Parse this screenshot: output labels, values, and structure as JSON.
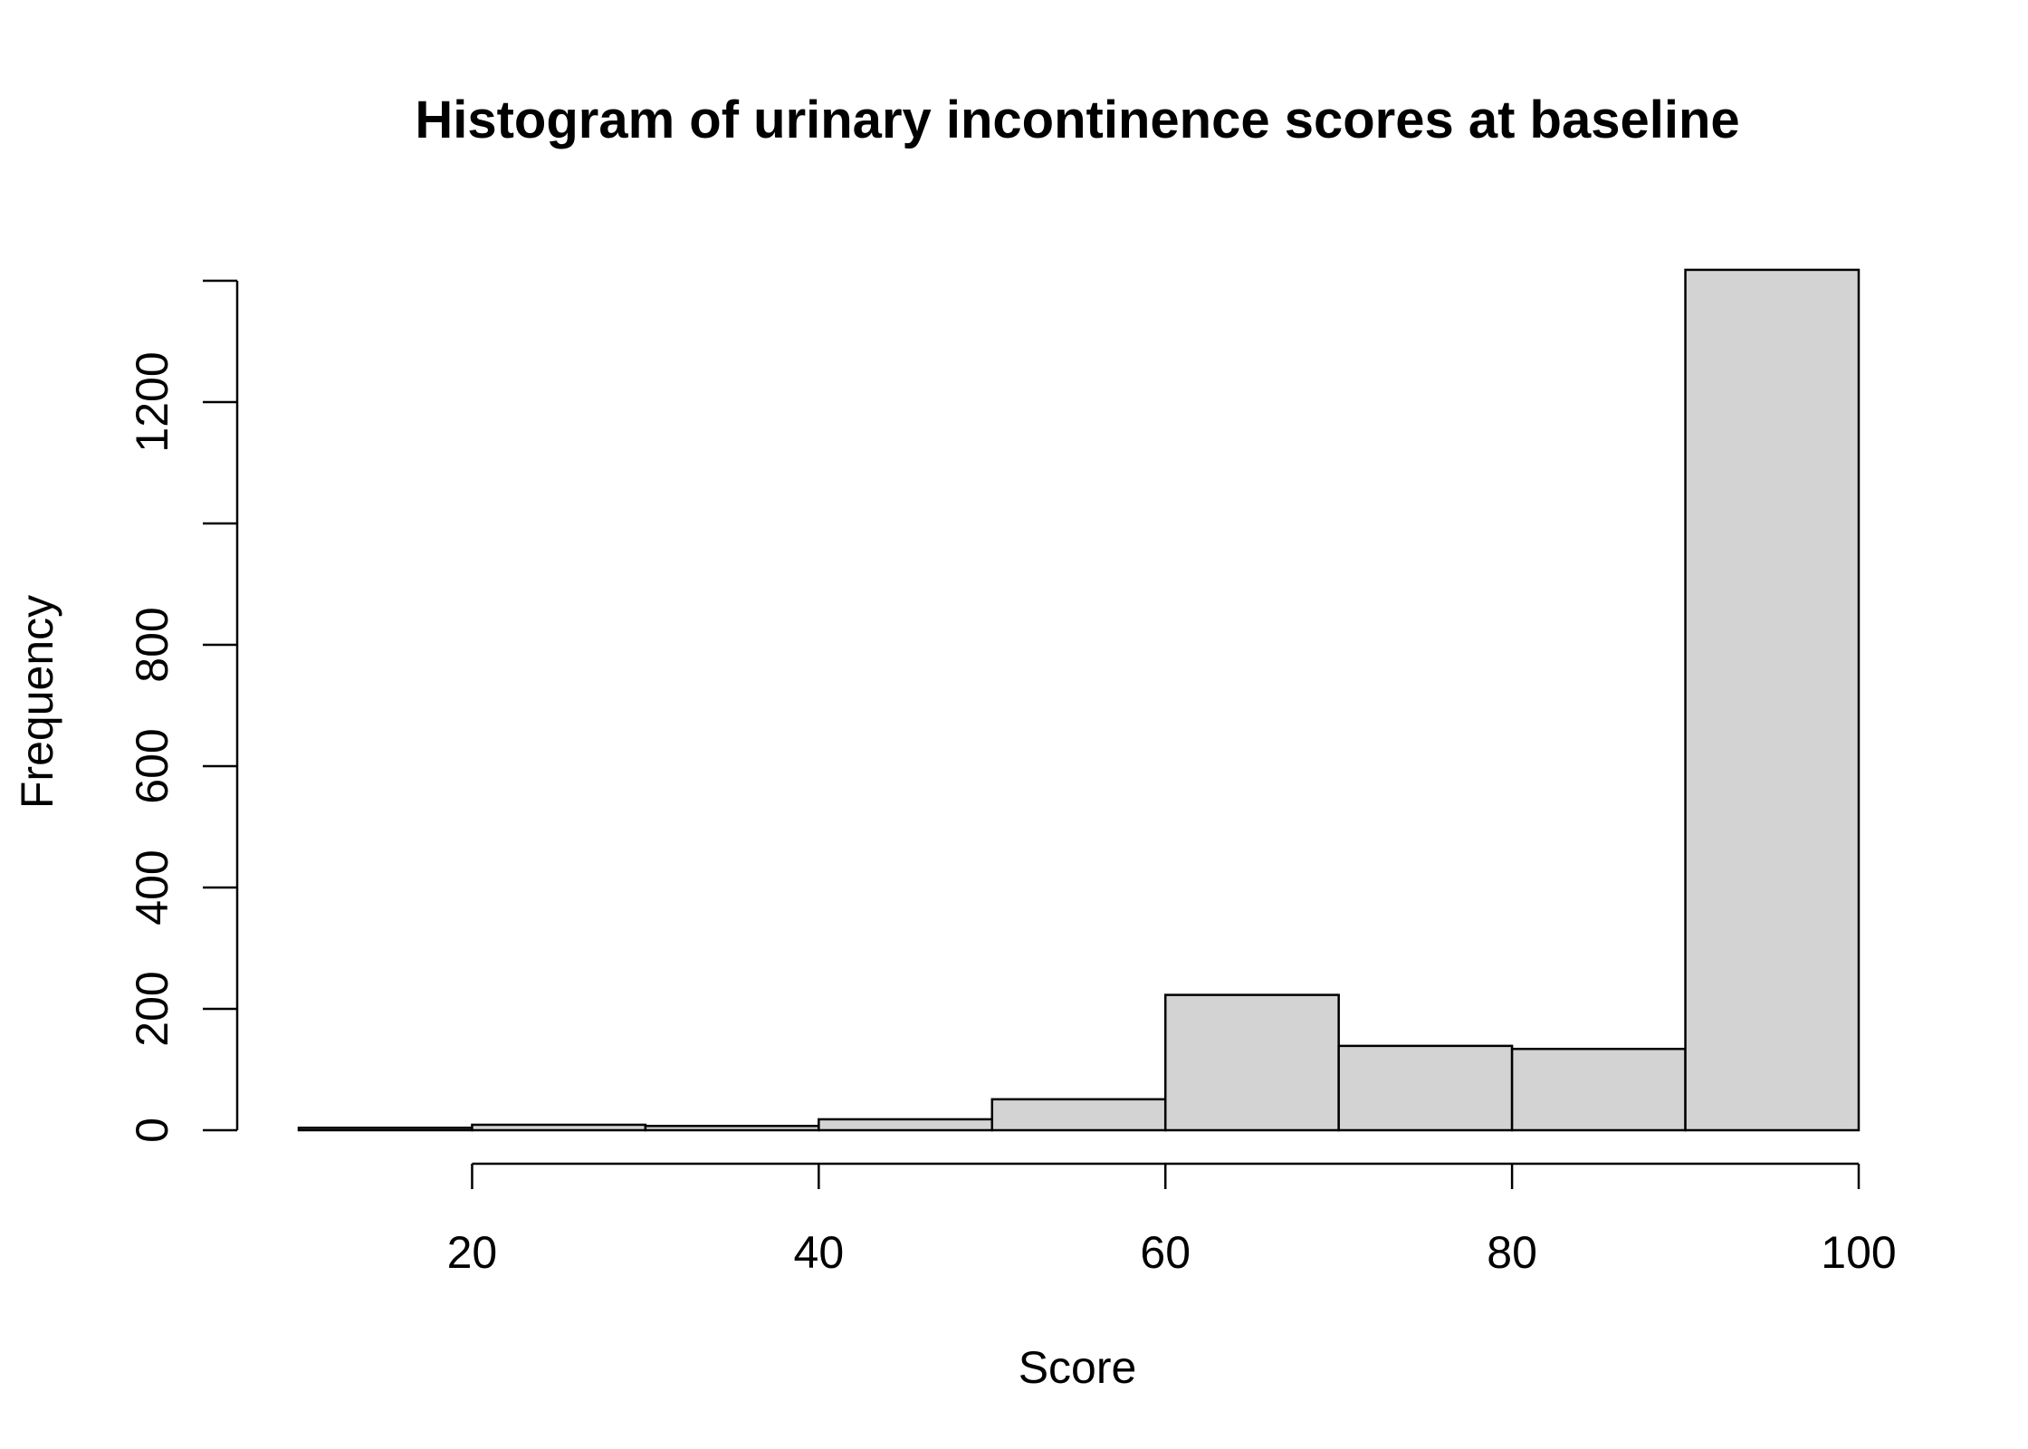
{
  "chart_data": {
    "type": "bar",
    "title": "Histogram of urinary incontinence scores at baseline",
    "xlabel": "Score",
    "ylabel": "Frequency",
    "bins": [
      {
        "start": 10,
        "end": 20,
        "count": 4
      },
      {
        "start": 20,
        "end": 30,
        "count": 9
      },
      {
        "start": 30,
        "end": 40,
        "count": 7
      },
      {
        "start": 40,
        "end": 50,
        "count": 18
      },
      {
        "start": 50,
        "end": 60,
        "count": 51
      },
      {
        "start": 60,
        "end": 70,
        "count": 223
      },
      {
        "start": 70,
        "end": 80,
        "count": 139
      },
      {
        "start": 80,
        "end": 90,
        "count": 134
      },
      {
        "start": 90,
        "end": 100,
        "count": 1418
      }
    ],
    "xticks": [
      20,
      40,
      60,
      80,
      100
    ],
    "yticks": [
      0,
      200,
      400,
      600,
      800,
      1000,
      1200,
      1400
    ],
    "ytick_labels": [
      "0",
      "200",
      "400",
      "600",
      "800",
      "",
      "1200",
      ""
    ],
    "xlim": [
      10,
      100
    ],
    "ylim": [
      0,
      1400
    ],
    "grid": false,
    "legend": "none",
    "colors": {
      "bar_fill": "#d3d3d3",
      "bar_stroke": "#000000"
    }
  }
}
